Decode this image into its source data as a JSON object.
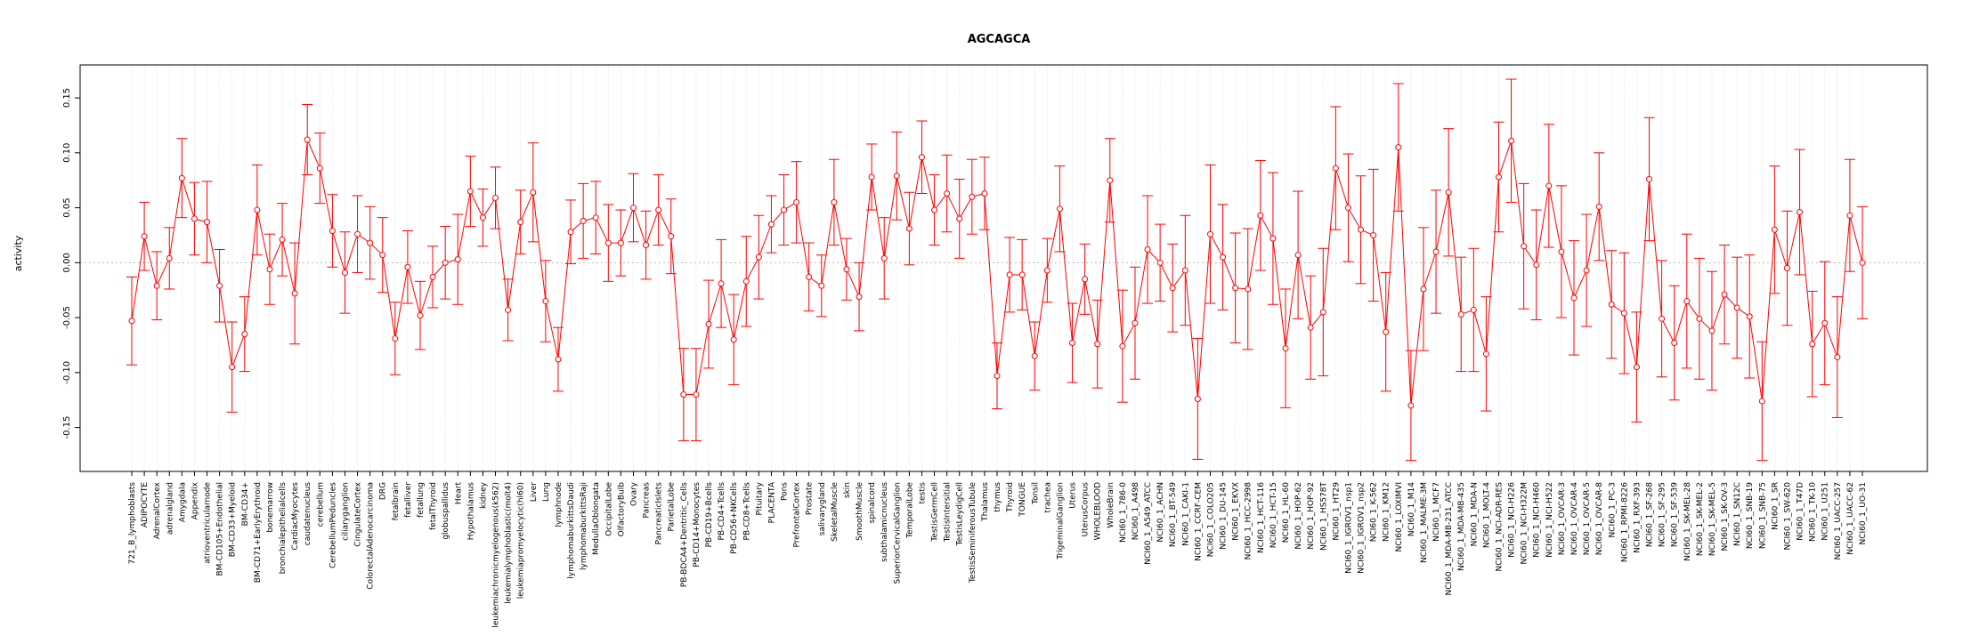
{
  "chart_data": {
    "type": "line",
    "title": "AGCAGCA",
    "xlabel": "",
    "ylabel": "activity",
    "ylim": [
      -0.19,
      0.18
    ],
    "yticks": [
      -0.15,
      -0.1,
      -0.05,
      0.0,
      0.05,
      0.1,
      0.15
    ],
    "ytick_labels": [
      "-0.15",
      "-0.10",
      "-0.05",
      "0.00",
      "0.05",
      "0.10",
      "0.15"
    ],
    "reference_line": 0.0,
    "grid": "vertical dotted",
    "series_color": "#FF0000",
    "categories": [
      "721_B_lymphoblasts",
      "ADIPOCYTE",
      "AdrenalCortex",
      "adrenalgland",
      "Amygdala",
      "Appendix",
      "atrioventricularnode",
      "BM-CD105+Endothelial",
      "BM-CD33+Myeloid",
      "BM-CD34+",
      "BM-CD71+EarlyErythroid",
      "bonemarrow",
      "bronchialepithelialcells",
      "CardiacMyocytes",
      "caudatenucleus",
      "cerebellum",
      "CerebellumPeduncles",
      "ciliaryganglion",
      "CingulateCortex",
      "ColorectalAdenocarcinoma",
      "DRG",
      "fetalbrain",
      "fetalliver",
      "fetallung",
      "fetalThyroid",
      "globuspallidus",
      "Heart",
      "Hypothalamus",
      "kidney",
      "leukemiachronicmyelogenous(k562)",
      "leukemialymphoblastic(molt4)",
      "leukemiapromyelocytic(hl60)",
      "Liver",
      "Lung",
      "lymphnode",
      "lymphomaburkittsDaudi",
      "lymphomaburkittsRaji",
      "MedullaOblongata",
      "OccipitalLobe",
      "OlfactoryBulb",
      "Ovary",
      "Pancreas",
      "PancreaticIslets",
      "ParietalLobe",
      "PB-BDCA4+Dentritic_Cells",
      "PB-CD14+Monocytes",
      "PB-CD19+Bcells",
      "PB-CD4+Tcells",
      "PB-CD56+NKCells",
      "PB-CD8+Tcells",
      "Pituitary",
      "PLACENTA",
      "Pons",
      "PrefrontalCortex",
      "Prostate",
      "salivarygland",
      "SkeletalMuscle",
      "skin",
      "SmoothMuscle",
      "spinalcord",
      "subthalamicnucleus",
      "SuperiorCervicalGanglion",
      "TemporalLobe",
      "testis",
      "TestisGermCell",
      "TestisIntersitial",
      "TestisLeydigCell",
      "TestisSeminiferousTubule",
      "Thalamus",
      "thymus",
      "Thyroid",
      "TONGUE",
      "Tonsil",
      "trachea",
      "TrigeminalGanglion",
      "Uterus",
      "UterusCorpus",
      "WHOLEBLOOD",
      "WholeBrain",
      "NCI60_1_786-0",
      "NCI60_1_A498",
      "NCI60_1_A549_ATCC",
      "NCI60_1_ACHN",
      "NCI60_1_BT-549",
      "NCI60_1_CAKI-1",
      "NCI60_1_CCRF-CEM",
      "NCI60_1_COLO205",
      "NCI60_1_DU-145",
      "NCI60_1_EKVX",
      "NCI60_1_HCC-2998",
      "NCI60_1_HCT-116",
      "NCI60_1_HCT-15",
      "NCI60_1_HL-60",
      "NCI60_1_HOP-62",
      "NCI60_1_HOP-92",
      "NCI60_1_HS578T",
      "NCI60_1_HT29",
      "NCI60_1_IGROV1_nsp1",
      "NCI60_1_IGROV1_nsp2",
      "NCI60_1_K-562",
      "NCI60_1_KM12",
      "NCI60_1_LOXIMVI",
      "NCI60_1_M14",
      "NCI60_1_MALME-3M",
      "NCI60_1_MCF7",
      "NCI60_1_MDA-MB-231_ATCC",
      "NCI60_1_MDA-MB-435",
      "NCI60_1_MDA-N",
      "NCI60_1_MOLT-4",
      "NCI60_1_NCI-ADR-RES",
      "NCI60_1_NCI-H226",
      "NCI60_1_NCI-H322M",
      "NCI60_1_NCI-H460",
      "NCI60_1_NCI-H522",
      "NCI60_1_OVCAR-3",
      "NCI60_1_OVCAR-4",
      "NCI60_1_OVCAR-5",
      "NCI60_1_OVCAR-8",
      "NCI60_1_PC-3",
      "NCI60_1_RPMI-8226",
      "NCI60_1_RXF-393",
      "NCI60_1_SF-268",
      "NCI60_1_SF-295",
      "NCI60_1_SF-539",
      "NCI60_1_SK-MEL-28",
      "NCI60_1_SK-MEL-2",
      "NCI60_1_SK-MEL-5",
      "NCI60_1_SK-OV-3",
      "NCI60_1_SN12C",
      "NCI60_1_SNB-19",
      "NCI60_1_SNB-75",
      "NCI60_1_SR",
      "NCI60_1_SW-620",
      "NCI60_1_T47D",
      "NCI60_1_TK-10",
      "NCI60_1_U251",
      "NCI60_1_UACC-257",
      "NCI60_1_UACC-62",
      "NCI60_1_UO-31"
    ],
    "series": [
      {
        "name": "AGCAGCA",
        "values": [
          -0.053,
          0.024,
          -0.021,
          0.004,
          0.077,
          0.04,
          0.037,
          -0.021,
          -0.095,
          -0.065,
          0.048,
          -0.006,
          0.021,
          -0.028,
          0.112,
          0.086,
          0.029,
          -0.009,
          0.026,
          0.018,
          0.007,
          -0.069,
          -0.004,
          -0.048,
          -0.013,
          0.0,
          0.003,
          0.065,
          0.041,
          0.059,
          -0.043,
          0.037,
          0.064,
          -0.035,
          -0.088,
          0.028,
          0.038,
          0.041,
          0.018,
          0.018,
          0.05,
          0.016,
          0.048,
          0.024,
          -0.12,
          -0.12,
          -0.056,
          -0.019,
          -0.07,
          -0.017,
          0.005,
          0.035,
          0.048,
          0.055,
          -0.013,
          -0.021,
          0.055,
          -0.006,
          -0.031,
          0.078,
          0.004,
          0.079,
          0.031,
          0.096,
          0.048,
          0.063,
          0.04,
          0.06,
          0.063,
          -0.103,
          -0.011,
          -0.011,
          -0.085,
          -0.007,
          0.049,
          -0.073,
          -0.015,
          -0.074,
          0.075,
          -0.076,
          -0.055,
          0.012,
          0.0,
          -0.023,
          -0.007,
          -0.124,
          0.026,
          0.005,
          -0.023,
          -0.024,
          0.043,
          0.022,
          -0.078,
          0.007,
          -0.059,
          -0.045,
          0.086,
          0.05,
          0.03,
          0.025,
          -0.063,
          0.105,
          -0.13,
          -0.024,
          0.01,
          0.064,
          -0.047,
          -0.043,
          -0.083,
          0.078,
          0.111,
          0.015,
          -0.002,
          0.07,
          0.01,
          -0.032,
          -0.007,
          0.051,
          -0.038,
          -0.046,
          -0.095,
          0.076,
          -0.051,
          -0.073,
          -0.035,
          -0.051,
          -0.062,
          -0.029,
          -0.041,
          -0.049,
          -0.126,
          0.03,
          -0.005,
          0.046,
          -0.074,
          -0.055,
          -0.086,
          0.043,
          0.0
        ],
        "errors": [
          0.04,
          0.031,
          0.031,
          0.028,
          0.036,
          0.033,
          0.037,
          0.033,
          0.041,
          0.034,
          0.041,
          0.032,
          0.033,
          0.046,
          0.032,
          0.032,
          0.033,
          0.037,
          0.035,
          0.033,
          0.034,
          0.033,
          0.033,
          0.031,
          0.028,
          0.033,
          0.041,
          0.032,
          0.026,
          0.028,
          0.028,
          0.029,
          0.045,
          0.037,
          0.029,
          0.029,
          0.034,
          0.033,
          0.035,
          0.03,
          0.031,
          0.031,
          0.032,
          0.034,
          0.042,
          0.042,
          0.04,
          0.04,
          0.041,
          0.041,
          0.038,
          0.026,
          0.032,
          0.037,
          0.031,
          0.028,
          0.039,
          0.028,
          0.031,
          0.03,
          0.037,
          0.04,
          0.033,
          0.033,
          0.032,
          0.035,
          0.036,
          0.034,
          0.033,
          0.03,
          0.034,
          0.032,
          0.031,
          0.029,
          0.039,
          0.036,
          0.032,
          0.04,
          0.038,
          0.051,
          0.051,
          0.049,
          0.035,
          0.04,
          0.05,
          0.055,
          0.063,
          0.048,
          0.05,
          0.055,
          0.05,
          0.06,
          0.054,
          0.058,
          0.047,
          0.058,
          0.056,
          0.049,
          0.049,
          0.06,
          0.054,
          0.058,
          0.05,
          0.056,
          0.056,
          0.058,
          0.052,
          0.056,
          0.052,
          0.05,
          0.056,
          0.057,
          0.05,
          0.056,
          0.06,
          0.052,
          0.051,
          0.049,
          0.049,
          0.055,
          0.05,
          0.056,
          0.053,
          0.052,
          0.061,
          0.055,
          0.054,
          0.045,
          0.046,
          0.056,
          0.054,
          0.058,
          0.052,
          0.057,
          0.048,
          0.056,
          0.055,
          0.051,
          0.051
        ]
      }
    ]
  }
}
